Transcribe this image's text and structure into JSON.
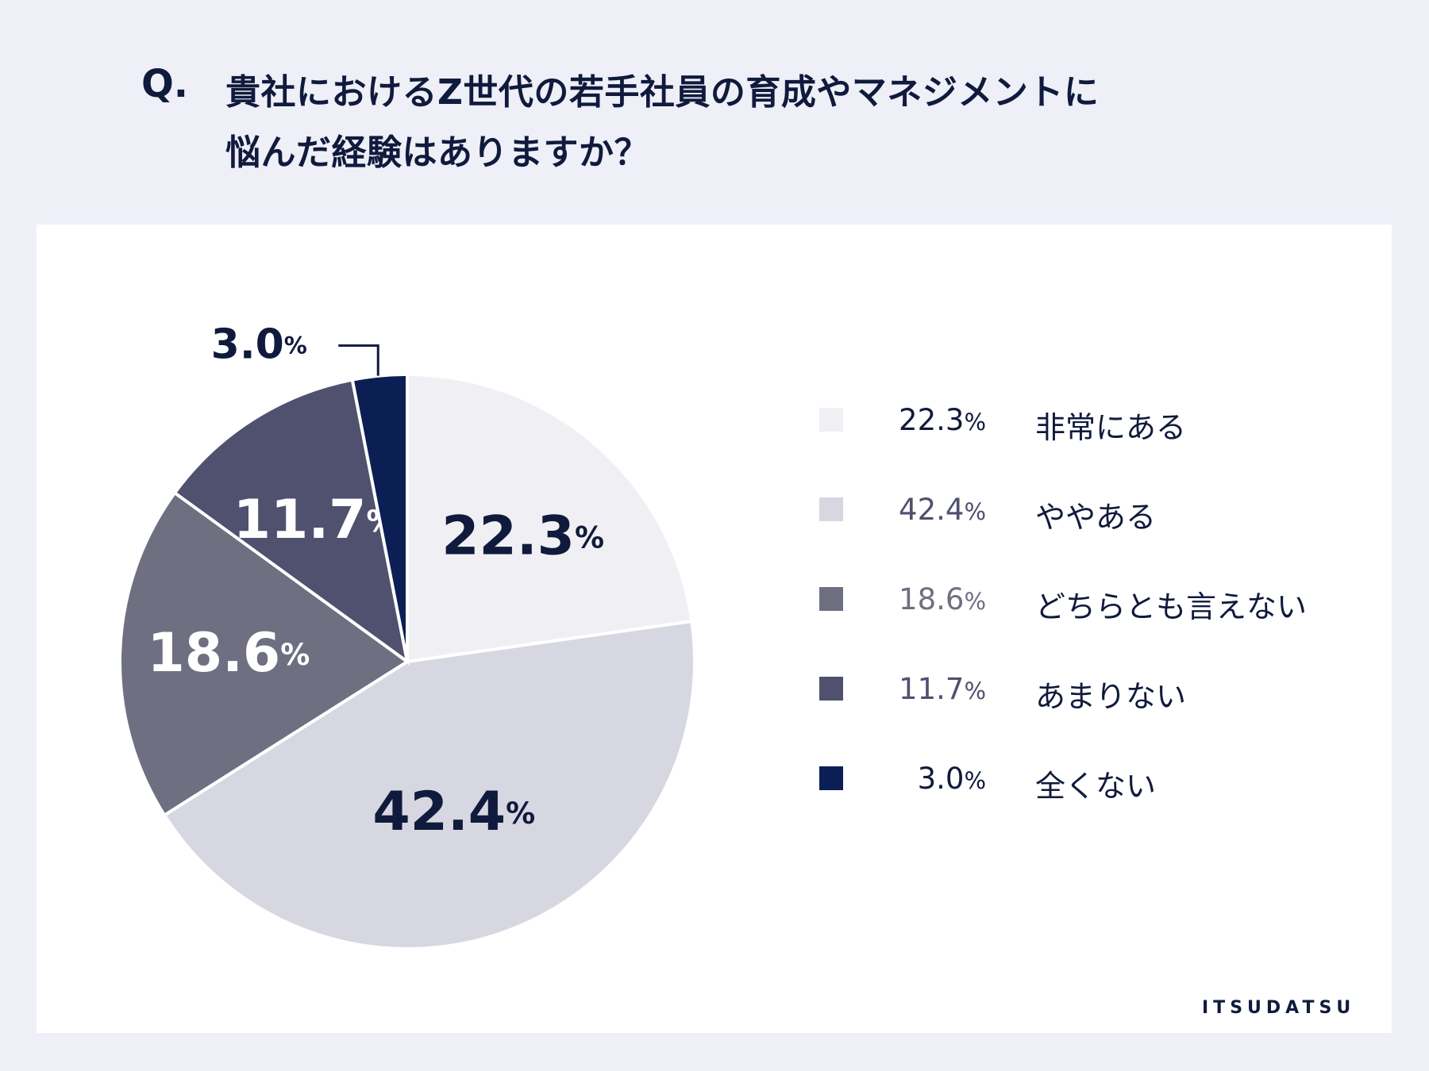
{
  "question": {
    "prefix": "Q.",
    "line1": "貴社におけるZ世代の若手社員の育成やマネジメントに",
    "line2": "悩んだ経験はありますか？"
  },
  "chart_data": {
    "type": "pie",
    "title": "貴社におけるZ世代の若手社員の育成やマネジメントに悩んだ経験はありますか？",
    "unit": "%",
    "slices": [
      {
        "label": "非常にある",
        "value": 22.3,
        "display": "22.3",
        "color": "#f0f0f4",
        "text_color": "#101a3c",
        "legend_text_color": "#101a3c"
      },
      {
        "label": "ややある",
        "value": 42.4,
        "display": "42.4",
        "color": "#d7d7e1",
        "text_color": "#101a3c",
        "legend_text_color": "#4f506d"
      },
      {
        "label": "どちらとも言えない",
        "value": 18.6,
        "display": "18.6",
        "color": "#6f6f82",
        "text_color": "#ffffff",
        "legend_text_color": "#6f6f82"
      },
      {
        "label": "あまりない",
        "value": 11.7,
        "display": "11.7",
        "color": "#50516f",
        "text_color": "#ffffff",
        "legend_text_color": "#50516f"
      },
      {
        "label": "全くない",
        "value": 3.0,
        "display": "3.0",
        "color": "#0b1f54",
        "text_color": "#101a3c",
        "legend_text_color": "#101a3c"
      }
    ]
  },
  "brand": {
    "name": "ITSUDATSU"
  }
}
